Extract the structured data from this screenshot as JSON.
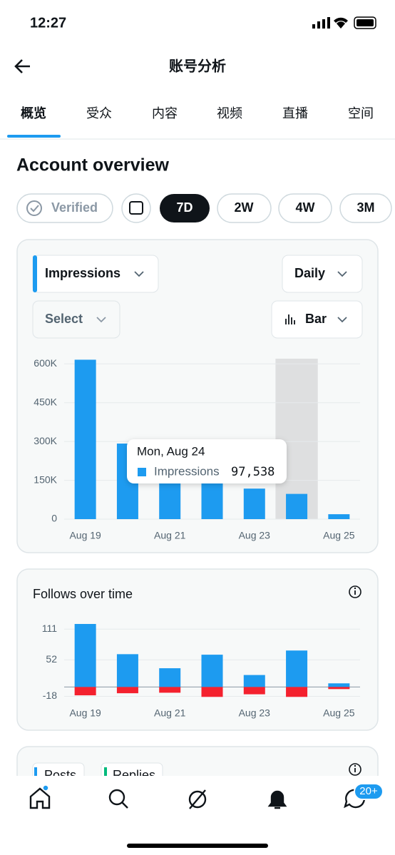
{
  "status_bar": {
    "time": "12:27"
  },
  "header": {
    "title": "账号分析"
  },
  "tabs": [
    "概览",
    "受众",
    "内容",
    "视频",
    "直播",
    "空间"
  ],
  "section_title": "Account overview",
  "range_chips": [
    "Verified",
    "7D",
    "2W",
    "4W",
    "3M"
  ],
  "controls": {
    "metric": "Impressions",
    "interval": "Daily",
    "compare": "Select",
    "chart_style": "Bar"
  },
  "chart_data": [
    {
      "type": "bar",
      "categories": [
        "Aug 19",
        null,
        "Aug 21",
        null,
        "Aug 23",
        null,
        "Aug 25"
      ],
      "series": [
        {
          "name": "Impressions",
          "color": "#1d9bf0",
          "values": [
            616000,
            292000,
            200000,
            140000,
            118000,
            97538,
            19000
          ],
          "value_labels": [
            null,
            null,
            null,
            null,
            null,
            "97,538",
            null
          ]
        }
      ],
      "ylim": [
        0,
        620000
      ],
      "yticks": [
        {
          "value": 0,
          "label": "0"
        },
        {
          "value": 150000,
          "label": "150K"
        },
        {
          "value": 300000,
          "label": "300K"
        },
        {
          "value": 450000,
          "label": "450K"
        },
        {
          "value": 600000,
          "label": "600K"
        }
      ],
      "grid": true,
      "tooltip": {
        "index": 5,
        "title": "Mon, Aug 24"
      }
    },
    {
      "type": "bar",
      "title": "Follows over time",
      "categories": [
        "Aug 19",
        null,
        "Aug 21",
        null,
        "Aug 23",
        null,
        "Aug 25"
      ],
      "series": [
        {
          "color": "#1d9bf0",
          "values": [
            121,
            63,
            36,
            62,
            23,
            70,
            7
          ]
        },
        {
          "color": "#f4212e",
          "values": [
            -16,
            -12,
            -11,
            -19,
            -14,
            -19,
            -4
          ]
        }
      ],
      "ylim": [
        -20,
        121
      ],
      "yticks": [
        -18,
        52,
        111
      ],
      "grid": true
    }
  ],
  "partial_card": {
    "legend": [
      "Posts",
      "Replies"
    ]
  },
  "bottom_nav": {
    "badge": "20+"
  }
}
